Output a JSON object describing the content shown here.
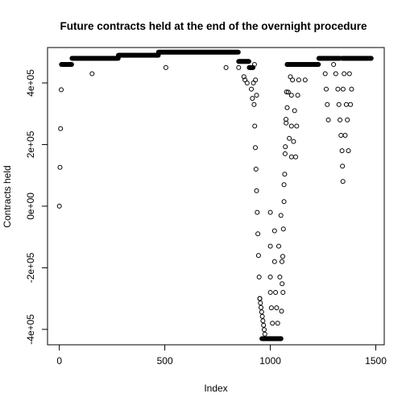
{
  "chart_data": {
    "type": "scatter",
    "title": "Future contracts held at the end of the overnight procedure",
    "xlabel": "Index",
    "ylabel": "Contracts held",
    "xlim": [
      -56,
      1540
    ],
    "ylim": [
      -450000,
      515000
    ],
    "x_ticks": [
      {
        "value": 0,
        "label": "0"
      },
      {
        "value": 500,
        "label": "500"
      },
      {
        "value": 1000,
        "label": "1000"
      },
      {
        "value": 1500,
        "label": "1500"
      }
    ],
    "y_ticks": [
      {
        "value": -400000,
        "label": "-4e+05"
      },
      {
        "value": -200000,
        "label": "-2e+05"
      },
      {
        "value": 0,
        "label": "0e+00"
      },
      {
        "value": 200000,
        "label": "2e+05"
      },
      {
        "value": 400000,
        "label": "4e+05"
      }
    ],
    "marker": "open-circle",
    "grid": false,
    "legend": "none",
    "series": [
      {
        "segments": [
          {
            "x_from": 0,
            "x_to": 10,
            "y_from": 0,
            "y_to": 420000
          },
          {
            "x_from": 10,
            "x_to": 60,
            "y": 460000
          },
          {
            "x_from": 60,
            "x_to": 280,
            "y": 480000
          },
          {
            "x_from": 280,
            "x_to": 470,
            "y": 490000
          },
          {
            "x_from": 470,
            "x_to": 850,
            "y": 500000
          },
          {
            "x_from": 850,
            "x_to": 900,
            "y": 470000
          },
          {
            "x_from": 900,
            "x_to": 920,
            "y": 450000
          },
          {
            "x_from": 920,
            "x_to": 950,
            "y_from": 400000,
            "y_to": -300000
          },
          {
            "x_from": 950,
            "x_to": 975,
            "y_from": -300000,
            "y_to": -420000
          },
          {
            "x_from": 960,
            "x_to": 1050,
            "y": -430000
          },
          {
            "x_from": 1050,
            "x_to": 1080,
            "y_from": -430000,
            "y_to": 460000
          },
          {
            "x_from": 1080,
            "x_to": 1120,
            "y": 460000
          },
          {
            "x_from": 1120,
            "x_to": 1230,
            "y": 460000
          },
          {
            "x_from": 1230,
            "x_to": 1330,
            "y": 480000
          },
          {
            "x_from": 1340,
            "x_to": 1480,
            "y": 480000
          }
        ],
        "scattered": [
          [
            155,
            430000
          ],
          [
            505,
            450000
          ],
          [
            790,
            450000
          ],
          [
            850,
            450000
          ],
          [
            875,
            420000
          ],
          [
            880,
            410000
          ],
          [
            890,
            400000
          ],
          [
            910,
            380000
          ],
          [
            915,
            350000
          ],
          [
            925,
            460000
          ],
          [
            930,
            410000
          ],
          [
            935,
            360000
          ],
          [
            1000,
            -20000
          ],
          [
            1000,
            -130000
          ],
          [
            1000,
            -230000
          ],
          [
            1000,
            -280000
          ],
          [
            1005,
            -330000
          ],
          [
            1010,
            -380000
          ],
          [
            1020,
            -80000
          ],
          [
            1020,
            -180000
          ],
          [
            1025,
            -280000
          ],
          [
            1030,
            -330000
          ],
          [
            1035,
            -380000
          ],
          [
            1040,
            -130000
          ],
          [
            1045,
            -230000
          ],
          [
            1050,
            -30000
          ],
          [
            1055,
            -180000
          ],
          [
            1060,
            -280000
          ],
          [
            1065,
            70000
          ],
          [
            1070,
            170000
          ],
          [
            1075,
            270000
          ],
          [
            1080,
            320000
          ],
          [
            1085,
            370000
          ],
          [
            1090,
            220000
          ],
          [
            1095,
            420000
          ],
          [
            1100,
            160000
          ],
          [
            1100,
            260000
          ],
          [
            1100,
            360000
          ],
          [
            1105,
            410000
          ],
          [
            1110,
            210000
          ],
          [
            1115,
            310000
          ],
          [
            1120,
            160000
          ],
          [
            1125,
            260000
          ],
          [
            1130,
            360000
          ],
          [
            1135,
            410000
          ],
          [
            1140,
            460000
          ],
          [
            1165,
            410000
          ],
          [
            1260,
            430000
          ],
          [
            1265,
            380000
          ],
          [
            1270,
            330000
          ],
          [
            1275,
            280000
          ],
          [
            1300,
            460000
          ],
          [
            1310,
            430000
          ],
          [
            1320,
            380000
          ],
          [
            1325,
            330000
          ],
          [
            1330,
            280000
          ],
          [
            1335,
            230000
          ],
          [
            1340,
            180000
          ],
          [
            1342,
            130000
          ],
          [
            1344,
            80000
          ],
          [
            1345,
            380000
          ],
          [
            1350,
            430000
          ],
          [
            1355,
            230000
          ],
          [
            1360,
            330000
          ],
          [
            1365,
            280000
          ],
          [
            1370,
            180000
          ],
          [
            1375,
            430000
          ],
          [
            1380,
            330000
          ],
          [
            1385,
            380000
          ]
        ]
      }
    ]
  }
}
